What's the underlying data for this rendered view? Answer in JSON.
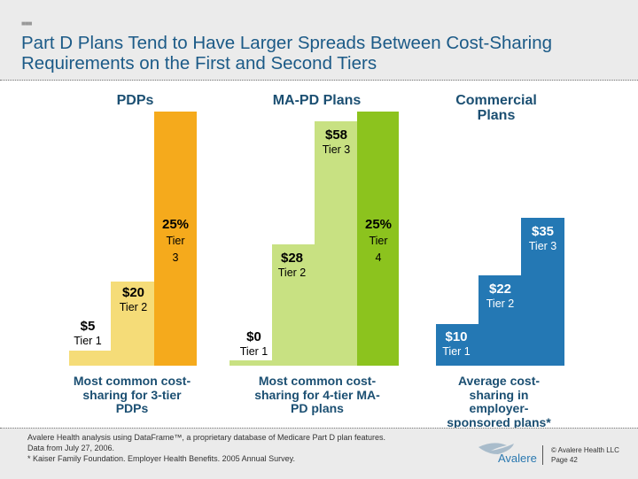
{
  "header": {
    "title": "Part D Plans Tend to Have Larger Spreads Between Cost-Sharing Requirements on the First and Second Tiers"
  },
  "colors": {
    "pdp_light": "#f5dc78",
    "pdp_dark": "#f5aa1c",
    "mapd_light": "#c8e182",
    "mapd_dark": "#8cc31e",
    "commercial": "#2478b4",
    "title": "#1b5a87"
  },
  "chart_data": [
    {
      "type": "bar",
      "title": "PDPs",
      "caption": "Most common cost-sharing for 3-tier PDPs",
      "categories": [
        "Tier 1",
        "Tier 2",
        "Tier 3"
      ],
      "values": [
        "$5",
        "$20",
        "25%"
      ],
      "tier_labels": [
        "Tier 1",
        "Tier 2",
        "Tier",
        "3"
      ]
    },
    {
      "type": "bar",
      "title": "MA-PD Plans",
      "caption": "Most common cost-sharing for 4-tier MA-PD plans",
      "categories": [
        "Tier 1",
        "Tier 2",
        "Tier 3",
        "Tier 4"
      ],
      "values": [
        "$0",
        "$28",
        "$58",
        "25%"
      ],
      "tier_labels": [
        "Tier 1",
        "Tier 2",
        "Tier 3",
        "Tier",
        "4"
      ]
    },
    {
      "type": "bar",
      "title": "Commercial Plans",
      "caption": "Average cost-sharing in employer-sponsored plans*",
      "categories": [
        "Tier 1",
        "Tier 2",
        "Tier 3"
      ],
      "values": [
        "$10",
        "$22",
        "$35"
      ],
      "tier_labels": [
        "Tier 1",
        "Tier 2",
        "Tier 3"
      ]
    }
  ],
  "footer": {
    "source1": "Avalere Health analysis using DataFrame™, a proprietary database of Medicare Part D plan features.",
    "source2": "Data from July 27, 2006.",
    "source3": "*  Kaiser Family Foundation. Employer Health Benefits. 2005 Annual Survey.",
    "logo": "Avalere",
    "copyright": "© Avalere Health LLC",
    "page": "Page 42"
  }
}
